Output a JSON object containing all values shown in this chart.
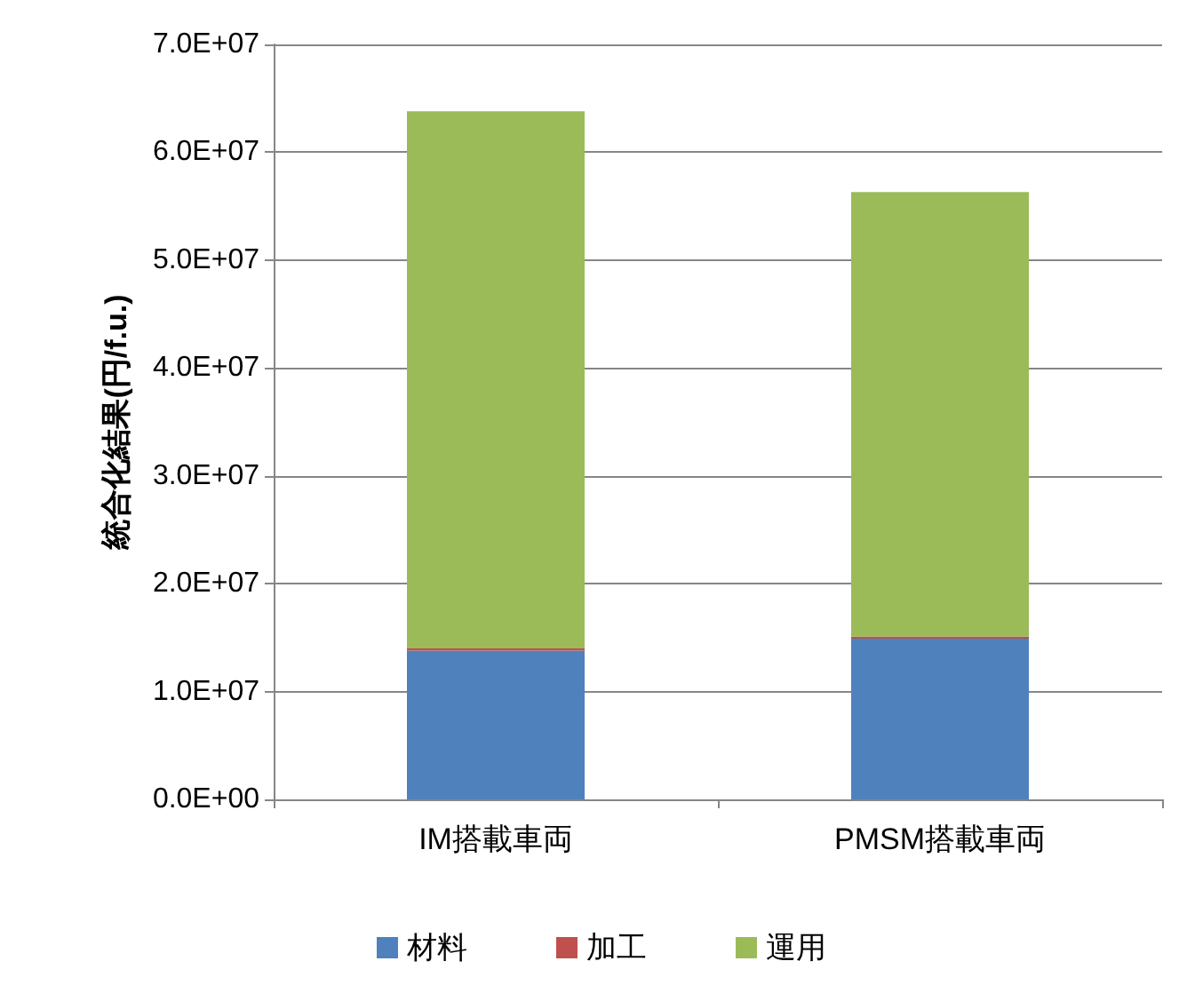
{
  "chart_data": {
    "type": "bar",
    "stacked": true,
    "ylabel": "統合化結果(円/f.u.)",
    "categories": [
      "IM搭載車両",
      "PMSM搭載車両"
    ],
    "series": [
      {
        "name": "材料",
        "color": "#4f81bd",
        "values": [
          13800000,
          14900000
        ]
      },
      {
        "name": "加工",
        "color": "#c0504d",
        "values": [
          200000,
          200000
        ]
      },
      {
        "name": "運用",
        "color": "#9bbb59",
        "values": [
          49800000,
          41200000
        ]
      }
    ],
    "ylim": [
      0,
      70000000
    ],
    "yticks": [
      {
        "value": 0,
        "label": "0.0E+00"
      },
      {
        "value": 10000000,
        "label": "1.0E+07"
      },
      {
        "value": 20000000,
        "label": "2.0E+07"
      },
      {
        "value": 30000000,
        "label": "3.0E+07"
      },
      {
        "value": 40000000,
        "label": "4.0E+07"
      },
      {
        "value": 50000000,
        "label": "5.0E+07"
      },
      {
        "value": 60000000,
        "label": "6.0E+07"
      },
      {
        "value": 70000000,
        "label": "7.0E+07"
      }
    ],
    "grid": "y",
    "legend": "bottom"
  }
}
